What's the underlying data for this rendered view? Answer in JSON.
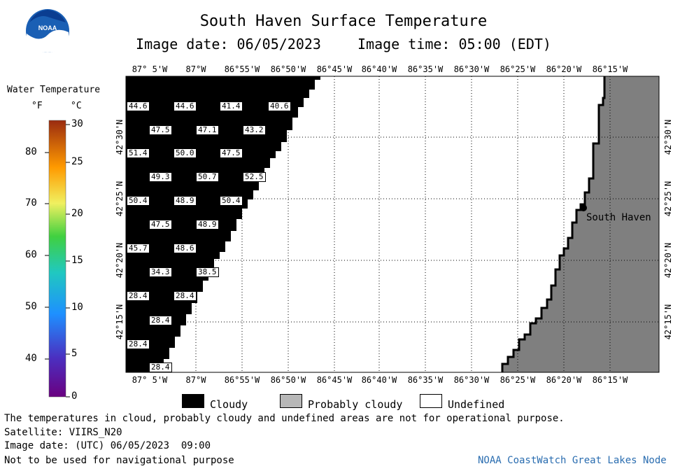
{
  "header": {
    "title": "South Haven Surface Temperature",
    "image_date": "Image date: 06/05/2023",
    "image_time": "Image time: 05:00 (EDT)"
  },
  "logo": {
    "text": "NOAA"
  },
  "legend": {
    "title": "Water Temperature",
    "unit_f": "°F",
    "unit_c": "°C",
    "f_ticks": [
      "80",
      "70",
      "60",
      "50",
      "40"
    ],
    "c_ticks": [
      "30",
      "25",
      "20",
      "15",
      "10",
      "5",
      "0"
    ]
  },
  "map": {
    "lon_labels": [
      "87° 5'W",
      "87°W",
      "86°55'W",
      "86°50'W",
      "86°45'W",
      "86°40'W",
      "86°35'W",
      "86°30'W",
      "86°25'W",
      "86°20'W",
      "86°15'W"
    ],
    "lat_labels": [
      "42°30'N",
      "42°25'N",
      "42°20'N",
      "42°15'N"
    ],
    "city": "South Haven",
    "colors": {
      "cloudy": "#000000",
      "probably_cloudy": "#7f7f7f",
      "undefined": "#ffffff"
    },
    "temperature_labels": [
      {
        "value": "44.6"
      },
      {
        "value": "44.6"
      },
      {
        "value": "41.4"
      },
      {
        "value": "40.6"
      },
      {
        "value": "47.5"
      },
      {
        "value": "47.1"
      },
      {
        "value": "43.2"
      },
      {
        "value": "51.4"
      },
      {
        "value": "50.0"
      },
      {
        "value": "47.5"
      },
      {
        "value": "49.3"
      },
      {
        "value": "50.7"
      },
      {
        "value": "52.5"
      },
      {
        "value": "50.4"
      },
      {
        "value": "48.9"
      },
      {
        "value": "50.4"
      },
      {
        "value": "47.5"
      },
      {
        "value": "48.9"
      },
      {
        "value": "45.7"
      },
      {
        "value": "48.6"
      },
      {
        "value": "34.3"
      },
      {
        "value": "38.5"
      },
      {
        "value": "28.4"
      },
      {
        "value": "28.4"
      },
      {
        "value": "28.4"
      },
      {
        "value": "28.4"
      },
      {
        "value": "28.4"
      }
    ]
  },
  "key": {
    "cloudy": "Cloudy",
    "probably_cloudy": "Probably cloudy",
    "undefined": "Undefined"
  },
  "footer": {
    "disclaimer": "The temperatures in cloud, probably cloudy and undefined areas are not for operational purpose.",
    "satellite": "Satellite: VIIRS_N20",
    "utc_date": "Image date: (UTC) 06/05/2023  09:00",
    "nav": "Not to be used for navigational purpose",
    "credit": "NOAA CoastWatch Great Lakes Node"
  }
}
